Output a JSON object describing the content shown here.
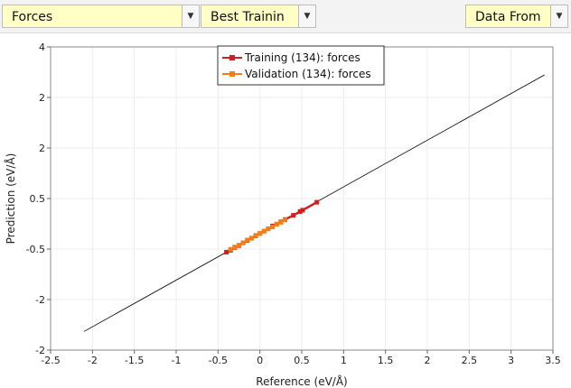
{
  "toolbar": {
    "quantity_combo": "Forces",
    "model_combo": "Best Trainin",
    "source_combo": "Data From"
  },
  "chart_data": {
    "type": "scatter",
    "xlabel": "Reference (eV/Å)",
    "ylabel": "Prediction (eV/Å)",
    "xlim": [
      -2.5,
      3.5
    ],
    "x_ticks": [
      -2.5,
      -2,
      -1.5,
      -1,
      -0.5,
      0,
      0.5,
      1,
      1.5,
      2,
      2.5,
      3,
      3.5
    ],
    "x_tick_labels": [
      "-2.5",
      "-2",
      "-1.5",
      "-1",
      "-0.5",
      "0",
      "0.5",
      "1",
      "1.5",
      "2",
      "2.5",
      "3",
      "3.5"
    ],
    "ylim": [
      -2.5,
      4
    ],
    "y_tick_labels_top_to_bottom": [
      "4",
      "2",
      "2",
      "0.5",
      "-0.5",
      "-2",
      "-2"
    ],
    "grid": true,
    "legend_position": "top-center",
    "reference_line": {
      "x": [
        -2.1,
        3.4
      ],
      "y": [
        -2.1,
        3.4
      ],
      "color": "#000000"
    },
    "series": [
      {
        "name": "Training (134): forces",
        "color": "#cc2222",
        "x": [
          -0.4,
          -0.35,
          -0.3,
          -0.25,
          -0.2,
          -0.15,
          -0.1,
          -0.05,
          0,
          0.05,
          0.1,
          0.15,
          0.2,
          0.25,
          0.3,
          0.4,
          0.48,
          0.51,
          0.68
        ],
        "y": [
          -0.4,
          -0.36,
          -0.3,
          -0.26,
          -0.2,
          -0.15,
          -0.1,
          -0.05,
          0,
          0.05,
          0.1,
          0.16,
          0.2,
          0.25,
          0.3,
          0.39,
          0.47,
          0.5,
          0.67
        ]
      },
      {
        "name": "Validation (134): forces",
        "color": "#f07f1a",
        "x": [
          -0.35,
          -0.3,
          -0.25,
          -0.2,
          -0.15,
          -0.1,
          -0.05,
          0,
          0.05,
          0.1,
          0.15,
          0.2,
          0.25,
          0.3
        ],
        "y": [
          -0.34,
          -0.29,
          -0.25,
          -0.2,
          -0.14,
          -0.1,
          -0.04,
          0,
          0.05,
          0.1,
          0.14,
          0.2,
          0.24,
          0.29
        ]
      }
    ]
  }
}
